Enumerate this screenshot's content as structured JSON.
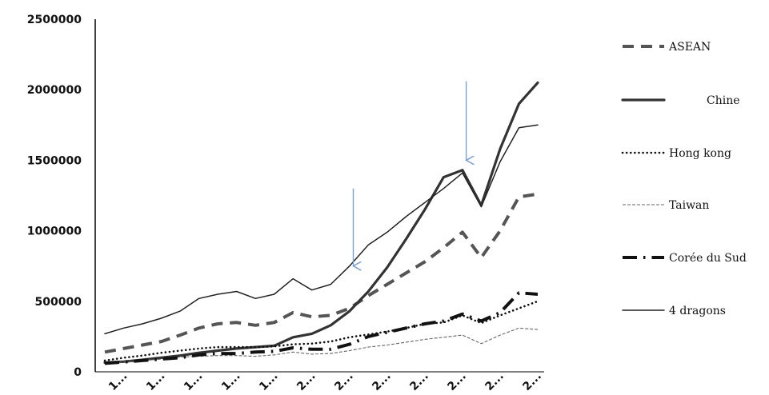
{
  "chart_data": {
    "type": "line",
    "x": [
      "1",
      "",
      "1",
      "",
      "1",
      "",
      "1",
      "",
      "1",
      "",
      "2",
      "",
      "2",
      "",
      "2",
      "",
      "2",
      "",
      "2",
      "",
      "2",
      "",
      "2",
      ""
    ],
    "x_tick_labels": [
      "1...",
      "1...",
      "1...",
      "1...",
      "1...",
      "2...",
      "2...",
      "2...",
      "2...",
      "2...",
      "2...",
      "2..."
    ],
    "ylim": [
      0,
      2500000
    ],
    "y_ticks": [
      "0",
      "500000",
      "1000000",
      "1500000",
      "2000000",
      "2500000"
    ],
    "grid": false,
    "legend_position": "right",
    "series": [
      {
        "name": "ASEAN",
        "style": "dashed-thick",
        "color": "#555555",
        "values": [
          140000,
          165000,
          190000,
          215000,
          260000,
          310000,
          340000,
          350000,
          330000,
          350000,
          420000,
          390000,
          400000,
          450000,
          540000,
          620000,
          700000,
          780000,
          880000,
          990000,
          810000,
          1000000,
          1240000,
          1260000
        ]
      },
      {
        "name": "Chine",
        "style": "solid-thick",
        "color": "#333333",
        "values": [
          65000,
          72000,
          85000,
          100000,
          115000,
          135000,
          150000,
          165000,
          175000,
          185000,
          245000,
          270000,
          330000,
          430000,
          570000,
          740000,
          940000,
          1150000,
          1380000,
          1430000,
          1180000,
          1580000,
          1900000,
          2050000
        ]
      },
      {
        "name": "Hong kong",
        "style": "dotted",
        "color": "#111111",
        "values": [
          80000,
          100000,
          115000,
          135000,
          150000,
          165000,
          175000,
          175000,
          175000,
          180000,
          195000,
          200000,
          215000,
          245000,
          265000,
          285000,
          310000,
          340000,
          350000,
          400000,
          345000,
          400000,
          450000,
          500000
        ]
      },
      {
        "name": "Taiwan",
        "style": "thin-dashed",
        "color": "#666666",
        "values": [
          55000,
          70000,
          80000,
          90000,
          105000,
          110000,
          115000,
          115000,
          110000,
          120000,
          140000,
          125000,
          130000,
          150000,
          175000,
          190000,
          210000,
          230000,
          245000,
          260000,
          200000,
          260000,
          310000,
          300000
        ]
      },
      {
        "name": "Corée du Sud",
        "style": "long-dash-dot",
        "color": "#111111",
        "values": [
          60000,
          70000,
          80000,
          90000,
          100000,
          120000,
          130000,
          130000,
          140000,
          145000,
          170000,
          160000,
          160000,
          195000,
          250000,
          280000,
          310000,
          340000,
          360000,
          410000,
          360000,
          420000,
          560000,
          550000
        ]
      },
      {
        "name": "4 dragons",
        "style": "thin-solid",
        "color": "#222222",
        "values": [
          270000,
          310000,
          340000,
          380000,
          430000,
          520000,
          550000,
          570000,
          520000,
          550000,
          660000,
          580000,
          620000,
          750000,
          900000,
          990000,
          1100000,
          1200000,
          1300000,
          1410000,
          1170000,
          1490000,
          1730000,
          1750000
        ]
      }
    ],
    "annotations": [
      {
        "type": "arrow",
        "color": "#7a9fd0",
        "x_index": 13.2,
        "from_value": 1300000,
        "to_value": 750000
      },
      {
        "type": "arrow",
        "color": "#7a9fd0",
        "x_index": 19.2,
        "from_value": 2060000,
        "to_value": 1500000
      }
    ]
  }
}
